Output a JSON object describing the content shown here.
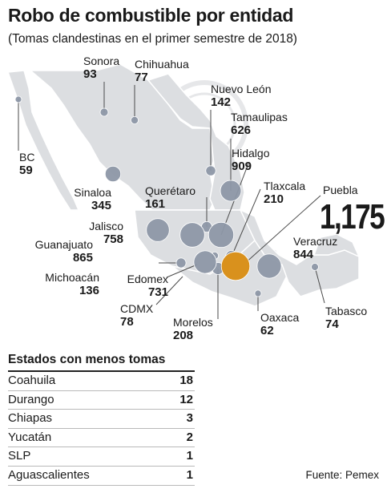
{
  "title": "Robo de combustible por entidad",
  "subtitle": "(Tomas clandestinas en el primer semestre de 2018)",
  "colors": {
    "map": "#dcdee1",
    "bubble": "#8d97a6",
    "highlight": "#d9911d",
    "text": "#1a1a1a"
  },
  "states": [
    {
      "id": "sonora",
      "name": "Sonora",
      "value": "93"
    },
    {
      "id": "chihuahua",
      "name": "Chihuahua",
      "value": "77"
    },
    {
      "id": "nuevo-leon",
      "name": "Nuevo León",
      "value": "142"
    },
    {
      "id": "tamaulipas",
      "name": "Tamaulipas",
      "value": "626"
    },
    {
      "id": "hidalgo",
      "name": "Hidalgo",
      "value": "909"
    },
    {
      "id": "bc",
      "name": "BC",
      "value": "59"
    },
    {
      "id": "sinaloa",
      "name": "Sinaloa",
      "value": "345"
    },
    {
      "id": "queretaro",
      "name": "Querétaro",
      "value": "161"
    },
    {
      "id": "tlaxcala",
      "name": "Tlaxcala",
      "value": "210"
    },
    {
      "id": "puebla",
      "name": "Puebla",
      "value": "1,175"
    },
    {
      "id": "jalisco",
      "name": "Jalisco",
      "value": "758"
    },
    {
      "id": "guanajuato",
      "name": "Guanajuato",
      "value": "865"
    },
    {
      "id": "veracruz",
      "name": "Veracruz",
      "value": "844"
    },
    {
      "id": "michoacan",
      "name": "Michoacán",
      "value": "136"
    },
    {
      "id": "edomex",
      "name": "Edomex",
      "value": "731"
    },
    {
      "id": "cdmx",
      "name": "CDMX",
      "value": "78"
    },
    {
      "id": "morelos",
      "name": "Morelos",
      "value": "208"
    },
    {
      "id": "oaxaca",
      "name": "Oaxaca",
      "value": "62"
    },
    {
      "id": "tabasco",
      "name": "Tabasco",
      "value": "74"
    }
  ],
  "table": {
    "title": "Estados con menos tomas",
    "rows": [
      {
        "state": "Coahuila",
        "value": "18"
      },
      {
        "state": "Durango",
        "value": "12"
      },
      {
        "state": "Chiapas",
        "value": "3"
      },
      {
        "state": "Yucatán",
        "value": "2"
      },
      {
        "state": "SLP",
        "value": "1"
      },
      {
        "state": "Aguascalientes",
        "value": "1"
      }
    ]
  },
  "source": "Fuente: Pemex"
}
